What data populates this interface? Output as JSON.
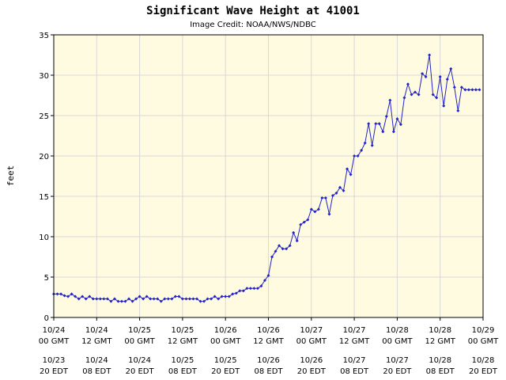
{
  "chart_data": {
    "type": "line",
    "title": "Significant Wave Height at 41001",
    "subtitle": "Image Credit: NOAA/NWS/NDBC",
    "ylabel": "feet",
    "xlabel": "",
    "ylim": [
      0,
      35
    ],
    "yticks": [
      0,
      5,
      10,
      15,
      20,
      25,
      30,
      35
    ],
    "xlim_hours": [
      0,
      120
    ],
    "grid": true,
    "legend": "none",
    "colors": {
      "background": "#ffffff",
      "plot_background": "#fffbe0",
      "grid": "#d8d8d8",
      "line": "#2222cc"
    },
    "xticks_gmt": [
      {
        "date": "10/24",
        "time": "00 GMT"
      },
      {
        "date": "10/24",
        "time": "12 GMT"
      },
      {
        "date": "10/25",
        "time": "00 GMT"
      },
      {
        "date": "10/25",
        "time": "12 GMT"
      },
      {
        "date": "10/26",
        "time": "00 GMT"
      },
      {
        "date": "10/26",
        "time": "12 GMT"
      },
      {
        "date": "10/27",
        "time": "00 GMT"
      },
      {
        "date": "10/27",
        "time": "12 GMT"
      },
      {
        "date": "10/28",
        "time": "00 GMT"
      },
      {
        "date": "10/28",
        "time": "12 GMT"
      },
      {
        "date": "10/29",
        "time": "00 GMT"
      }
    ],
    "xticks_edt": [
      {
        "date": "10/23",
        "time": "20 EDT"
      },
      {
        "date": "10/24",
        "time": "08 EDT"
      },
      {
        "date": "10/24",
        "time": "20 EDT"
      },
      {
        "date": "10/25",
        "time": "08 EDT"
      },
      {
        "date": "10/25",
        "time": "20 EDT"
      },
      {
        "date": "10/26",
        "time": "08 EDT"
      },
      {
        "date": "10/26",
        "time": "20 EDT"
      },
      {
        "date": "10/27",
        "time": "08 EDT"
      },
      {
        "date": "10/27",
        "time": "20 EDT"
      },
      {
        "date": "10/28",
        "time": "08 EDT"
      },
      {
        "date": "10/28",
        "time": "20 EDT"
      }
    ],
    "series": [
      {
        "name": "",
        "x": [
          0,
          1,
          2,
          3,
          4,
          5,
          6,
          7,
          8,
          9,
          10,
          11,
          12,
          13,
          14,
          15,
          16,
          17,
          18,
          19,
          20,
          21,
          22,
          23,
          24,
          25,
          26,
          27,
          28,
          29,
          30,
          31,
          32,
          33,
          34,
          35,
          36,
          37,
          38,
          39,
          40,
          41,
          42,
          43,
          44,
          45,
          46,
          47,
          48,
          49,
          50,
          51,
          52,
          53,
          54,
          55,
          56,
          57,
          58,
          59,
          60,
          61,
          62,
          63,
          64,
          65,
          66,
          67,
          68,
          69,
          70,
          71,
          72,
          73,
          74,
          75,
          76,
          77,
          78,
          79,
          80,
          81,
          82,
          83,
          84,
          85,
          86,
          87,
          88,
          89,
          90,
          91,
          92,
          93,
          94,
          95,
          96,
          97,
          98,
          99,
          100,
          101,
          102,
          103,
          104,
          105,
          106,
          107,
          108,
          109,
          110,
          111,
          112,
          113,
          114,
          115,
          116,
          117,
          118,
          119
        ],
        "y": [
          2.9,
          2.9,
          2.9,
          2.7,
          2.6,
          2.9,
          2.6,
          2.3,
          2.6,
          2.3,
          2.6,
          2.3,
          2.3,
          2.3,
          2.3,
          2.3,
          2.0,
          2.3,
          2.0,
          2.0,
          2.0,
          2.3,
          2.0,
          2.3,
          2.6,
          2.3,
          2.6,
          2.3,
          2.3,
          2.3,
          2.0,
          2.3,
          2.3,
          2.3,
          2.6,
          2.6,
          2.3,
          2.3,
          2.3,
          2.3,
          2.3,
          2.0,
          2.0,
          2.3,
          2.3,
          2.6,
          2.3,
          2.6,
          2.6,
          2.6,
          2.9,
          3.0,
          3.3,
          3.3,
          3.6,
          3.6,
          3.6,
          3.6,
          3.9,
          4.6,
          5.2,
          7.5,
          8.2,
          8.9,
          8.5,
          8.5,
          8.9,
          10.5,
          9.5,
          11.5,
          11.8,
          12.1,
          13.4,
          13.1,
          13.4,
          14.8,
          14.8,
          12.8,
          15.1,
          15.4,
          16.1,
          15.7,
          18.4,
          17.7,
          20.0,
          20.0,
          20.7,
          21.6,
          24.0,
          21.3,
          24.0,
          24.0,
          23.0,
          24.9,
          26.9,
          23.0,
          24.6,
          23.9,
          27.2,
          28.9,
          27.6,
          27.9,
          27.6,
          30.2,
          29.8,
          32.5,
          27.6,
          27.2,
          29.8,
          26.2,
          29.5,
          30.8,
          28.5,
          25.6,
          28.5,
          28.2,
          28.2,
          28.2,
          28.2,
          28.2
        ]
      }
    ]
  }
}
